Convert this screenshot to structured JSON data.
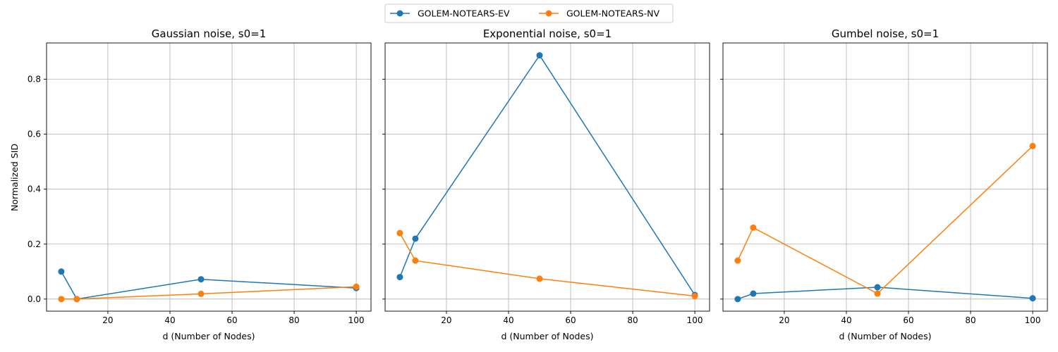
{
  "legend": {
    "placement": "top-center",
    "entries": [
      {
        "label": "GOLEM-NOTEARS-EV",
        "color": "#1f77b4"
      },
      {
        "label": "GOLEM-NOTEARS-NV",
        "color": "#ff7f0e"
      }
    ]
  },
  "shared_ylabel": "Normalized SID",
  "chart_data": [
    {
      "type": "line",
      "title": "Gaussian noise, s0=1",
      "xlabel": "d (Number of Nodes)",
      "ylabel": "Normalized SID",
      "xlim": [
        0.25,
        104.75
      ],
      "ylim": [
        -0.044,
        0.932
      ],
      "xticks": [
        20,
        40,
        60,
        80,
        100
      ],
      "yticks": [
        0.0,
        0.2,
        0.4,
        0.6,
        0.8
      ],
      "grid": true,
      "x": [
        5,
        10,
        50,
        100
      ],
      "series": [
        {
          "name": "GOLEM-NOTEARS-EV",
          "color": "#1f77b4",
          "values": [
            0.1,
            0.0,
            0.072,
            0.04
          ]
        },
        {
          "name": "GOLEM-NOTEARS-NV",
          "color": "#ff7f0e",
          "values": [
            0.0,
            0.0,
            0.019,
            0.045
          ]
        }
      ]
    },
    {
      "type": "line",
      "title": "Exponential noise, s0=1",
      "xlabel": "d (Number of Nodes)",
      "ylabel": "",
      "xlim": [
        0.25,
        104.75
      ],
      "ylim": [
        -0.044,
        0.932
      ],
      "xticks": [
        20,
        40,
        60,
        80,
        100
      ],
      "yticks": [
        0.0,
        0.2,
        0.4,
        0.6,
        0.8
      ],
      "grid": true,
      "x": [
        5,
        10,
        50,
        100
      ],
      "series": [
        {
          "name": "GOLEM-NOTEARS-EV",
          "color": "#1f77b4",
          "values": [
            0.08,
            0.22,
            0.887,
            0.015
          ]
        },
        {
          "name": "GOLEM-NOTEARS-NV",
          "color": "#ff7f0e",
          "values": [
            0.24,
            0.14,
            0.074,
            0.011
          ]
        }
      ]
    },
    {
      "type": "line",
      "title": "Gumbel noise, s0=1",
      "xlabel": "d (Number of Nodes)",
      "ylabel": "",
      "xlim": [
        0.25,
        104.75
      ],
      "ylim": [
        -0.044,
        0.932
      ],
      "xticks": [
        20,
        40,
        60,
        80,
        100
      ],
      "yticks": [
        0.0,
        0.2,
        0.4,
        0.6,
        0.8
      ],
      "grid": true,
      "x": [
        5,
        10,
        50,
        100
      ],
      "series": [
        {
          "name": "GOLEM-NOTEARS-EV",
          "color": "#1f77b4",
          "values": [
            0.0,
            0.02,
            0.043,
            0.003
          ]
        },
        {
          "name": "GOLEM-NOTEARS-NV",
          "color": "#ff7f0e",
          "values": [
            0.14,
            0.26,
            0.02,
            0.557
          ]
        }
      ]
    }
  ]
}
